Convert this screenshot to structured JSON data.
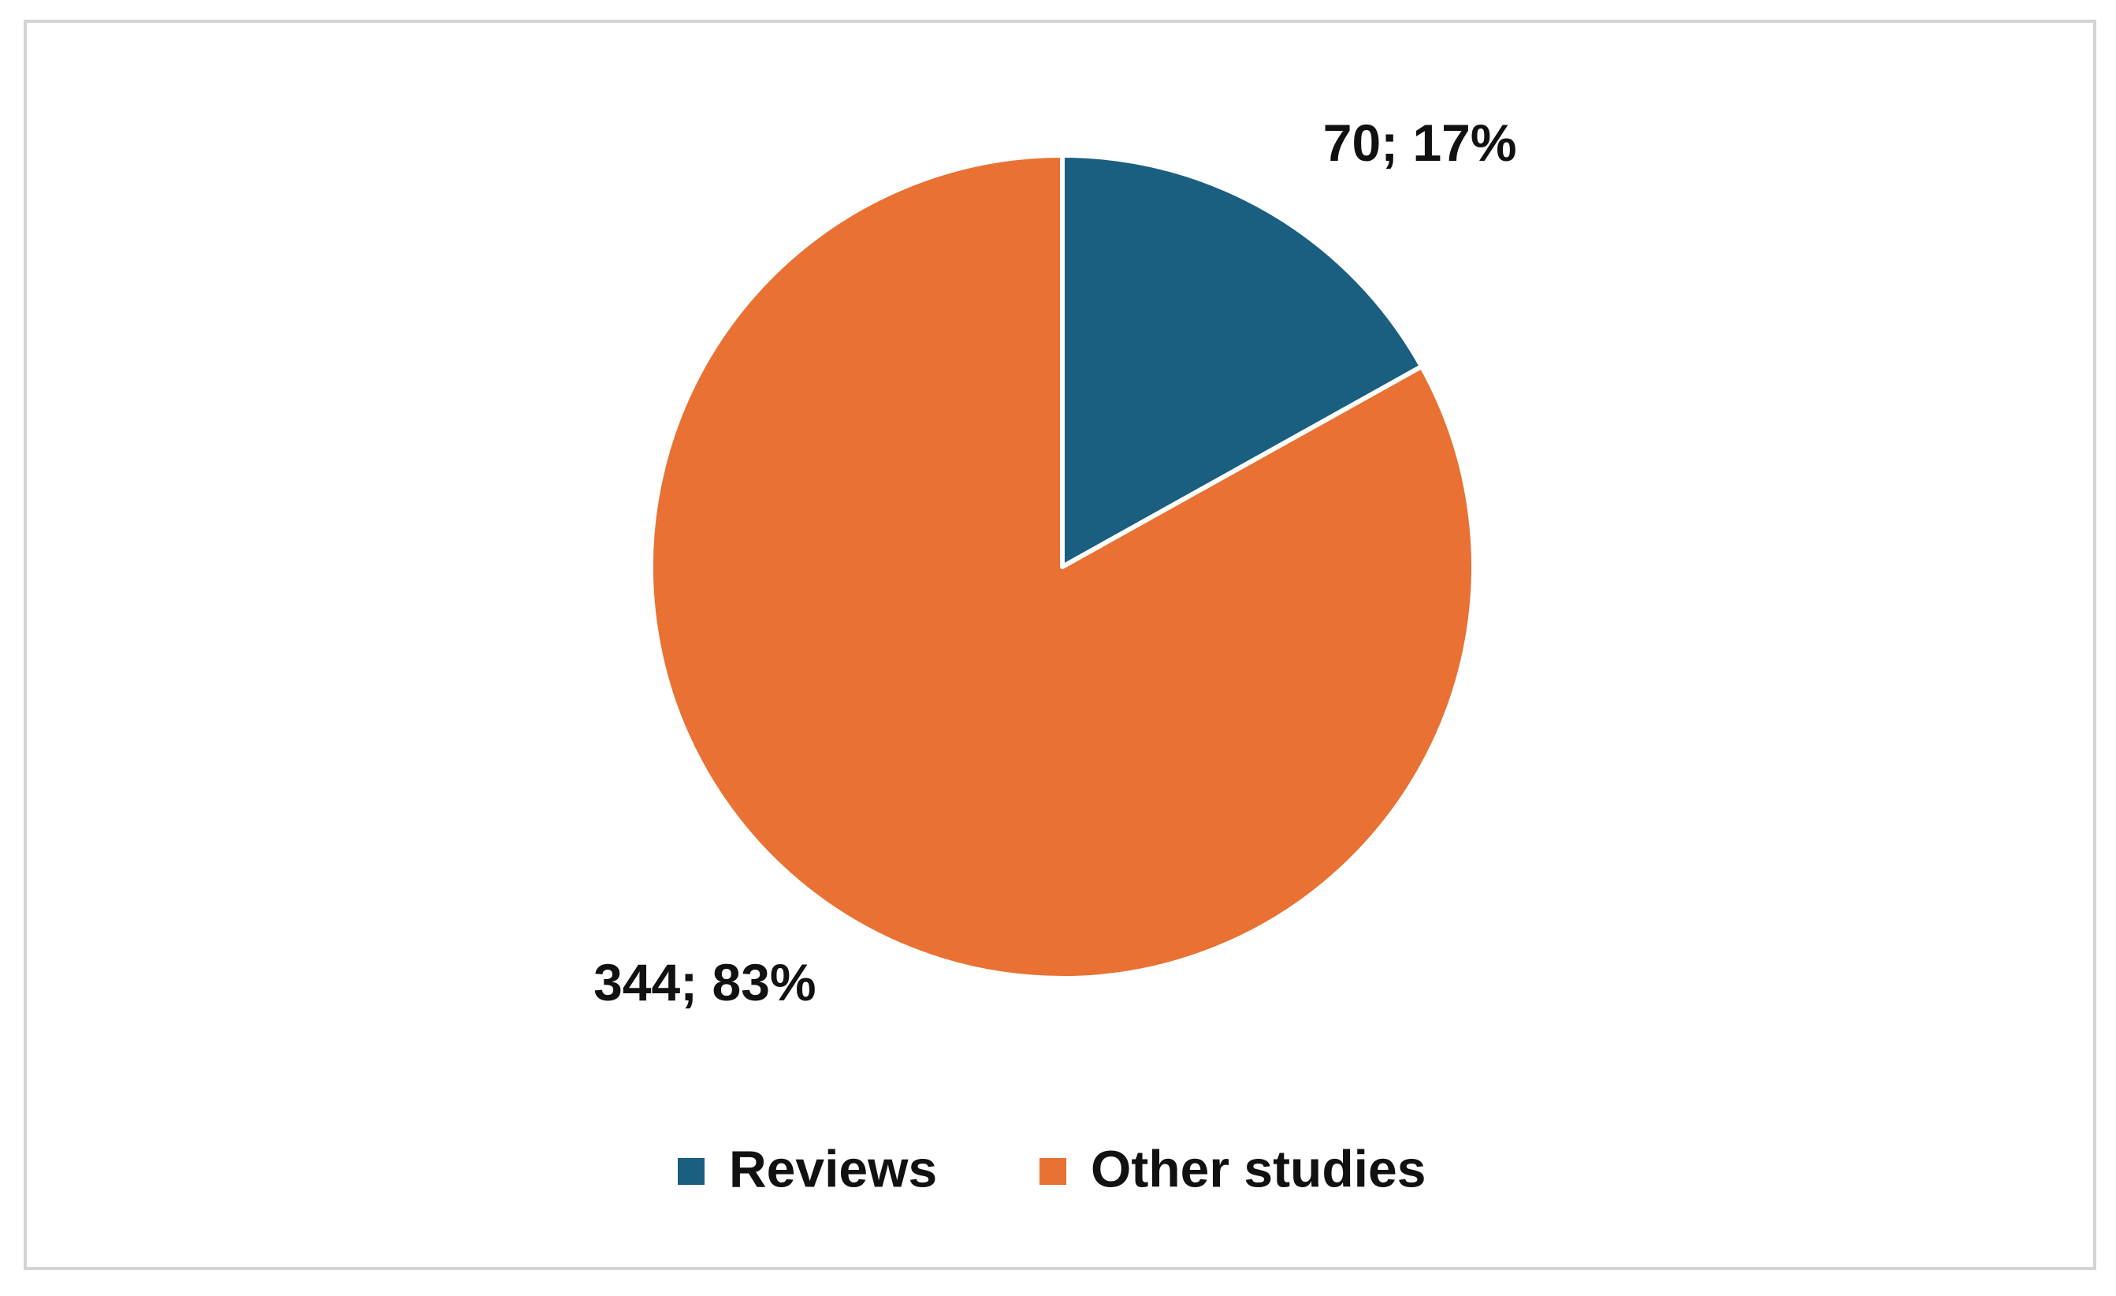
{
  "chart_data": {
    "type": "pie",
    "categories": [
      "Reviews",
      "Other studies"
    ],
    "values": [
      70,
      344
    ],
    "value_labels": [
      "70; 17%",
      "344; 83%"
    ],
    "colors": [
      "#1a5e80",
      "#e87133"
    ]
  }
}
